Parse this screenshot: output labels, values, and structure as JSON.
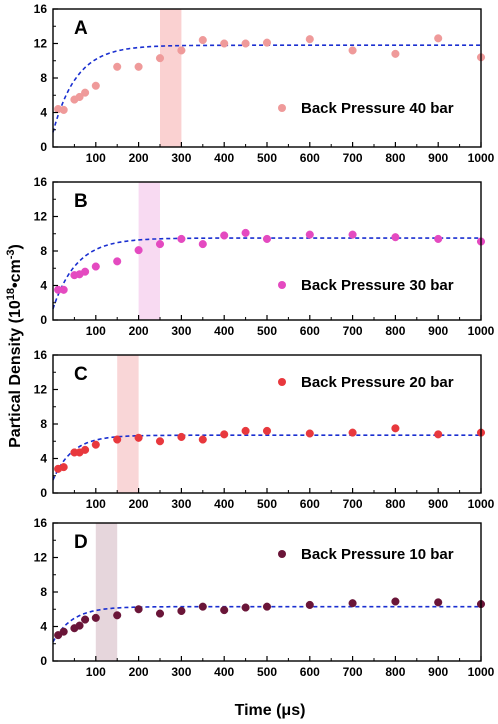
{
  "chart_data": {
    "type": "scatter",
    "xlabel": "Time (μs)",
    "ylabel": {
      "main": "Partical Density (10",
      "sup1": "18",
      "mid": "•cm",
      "sup2": "-3",
      "end": ")"
    },
    "xlim": [
      0,
      1000
    ],
    "ylim": [
      0,
      16
    ],
    "xticks": [
      100,
      200,
      300,
      400,
      500,
      600,
      700,
      800,
      900,
      1000
    ],
    "yticks": [
      0,
      4,
      8,
      12,
      16
    ],
    "legend_position": "right",
    "panels": [
      {
        "letter": "A",
        "legend": "Back Pressure 40 bar",
        "color": "#ef9a9a",
        "band": [
          250,
          300
        ],
        "band_color": "#f9c9c9",
        "fit": {
          "a": 11.8,
          "b": 1.7,
          "tau": 55
        },
        "x": [
          12,
          25,
          50,
          62,
          75,
          100,
          150,
          200,
          250,
          300,
          350,
          400,
          450,
          500,
          600,
          700,
          800,
          900,
          1000
        ],
        "y": [
          4.4,
          4.3,
          5.5,
          5.8,
          6.3,
          7.1,
          9.3,
          9.3,
          10.3,
          11.2,
          12.4,
          12.0,
          12.0,
          12.1,
          12.5,
          11.2,
          10.8,
          12.6,
          10.4
        ]
      },
      {
        "letter": "B",
        "legend": "Back Pressure 30 bar",
        "color": "#e44ac0",
        "band": [
          200,
          250
        ],
        "band_color": "#f7d4f0",
        "fit": {
          "a": 9.5,
          "b": 1.3,
          "tau": 55
        },
        "x": [
          12,
          25,
          50,
          62,
          75,
          100,
          150,
          200,
          250,
          300,
          350,
          400,
          450,
          500,
          600,
          700,
          800,
          900,
          1000
        ],
        "y": [
          3.5,
          3.5,
          5.2,
          5.3,
          5.6,
          6.2,
          6.8,
          8.1,
          8.8,
          9.4,
          8.8,
          9.8,
          10.1,
          9.4,
          9.9,
          9.9,
          9.6,
          9.4,
          9.1
        ]
      },
      {
        "letter": "C",
        "legend": "Back Pressure 20 bar",
        "color": "#e8383d",
        "band": [
          150,
          200
        ],
        "band_color": "#f8cfd0",
        "fit": {
          "a": 6.7,
          "b": 1.5,
          "tau": 45
        },
        "x": [
          12,
          25,
          50,
          62,
          75,
          100,
          150,
          200,
          250,
          300,
          350,
          400,
          450,
          500,
          600,
          700,
          800,
          900,
          1000
        ],
        "y": [
          2.8,
          3.0,
          4.7,
          4.7,
          5.0,
          5.6,
          6.2,
          6.4,
          6.0,
          6.5,
          6.2,
          6.8,
          7.2,
          7.2,
          6.9,
          7.0,
          7.5,
          6.8,
          7.0
        ]
      },
      {
        "letter": "D",
        "legend": "Back Pressure 10 bar",
        "color": "#6a1538",
        "band": [
          100,
          150
        ],
        "band_color": "#e2cfd6",
        "fit": {
          "a": 6.3,
          "b": 2.2,
          "tau": 45
        },
        "x": [
          12,
          25,
          50,
          62,
          75,
          100,
          150,
          200,
          250,
          300,
          350,
          400,
          450,
          500,
          600,
          700,
          800,
          900,
          1000
        ],
        "y": [
          3.0,
          3.4,
          3.8,
          4.1,
          4.8,
          5.0,
          5.3,
          6.0,
          5.5,
          5.8,
          6.3,
          5.9,
          6.2,
          6.3,
          6.5,
          6.7,
          6.9,
          6.8,
          6.6
        ]
      }
    ]
  }
}
